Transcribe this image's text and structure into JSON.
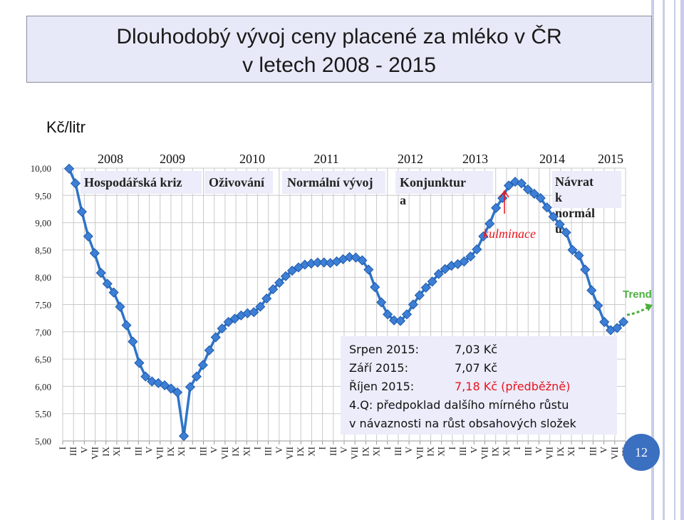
{
  "slide": {
    "title_line1": "Dlouhodobý vývoj ceny placené za mléko v ČR",
    "title_line2": "v letech 2008 - 2015",
    "unit_label": "Kč/litr",
    "page_number": "12"
  },
  "info_box": {
    "rows": [
      {
        "label": "Srpen 2015:",
        "value": "7,03 Kč",
        "highlight": false
      },
      {
        "label": "Září 2015:",
        "value": "7,07 Kč",
        "highlight": false
      },
      {
        "label": "Říjen 2015:",
        "value": "7,18 Kč  (předběžně)",
        "highlight": true
      }
    ],
    "note_line1": "4.Q: předpoklad dalšího mírného růstu",
    "note_line2": "v návaznosti na růst obsahových složek"
  },
  "colors": {
    "line": "#2e74c8",
    "marker": "#3d7fd6",
    "phase_box": "#ececfa",
    "trend": "#4caf3e",
    "kulminace": "#e8141d",
    "info_highlight": "#e8141d"
  },
  "chart_data": {
    "type": "line",
    "ylim": [
      5.0,
      10.0
    ],
    "yticks": [
      "5,00",
      "5,50",
      "6,00",
      "6,50",
      "7,00",
      "7,50",
      "8,00",
      "8,50",
      "9,00",
      "9,50",
      "10,00"
    ],
    "y_grid": true,
    "x_tick_labels": [
      "I",
      "III",
      "V",
      "VII",
      "IX",
      "XI",
      "I",
      "III",
      "V",
      "VII",
      "IX",
      "XI",
      "I",
      "III",
      "V",
      "VII",
      "IX",
      "XI",
      "I",
      "III",
      "V",
      "VII",
      "IX",
      "XI",
      "I",
      "III",
      "V",
      "VII",
      "IX",
      "XI",
      "I",
      "III",
      "V",
      "VII",
      "IX",
      "XI",
      "I",
      "III",
      "V",
      "VII",
      "IX",
      "XI",
      "I",
      "III",
      "V",
      "VII",
      "IX",
      "XI",
      "I",
      "III",
      "V",
      "VII",
      "IX"
    ],
    "years": [
      "2008",
      "2009",
      "2010",
      "2011",
      "2012",
      "2013",
      "2014",
      "2015"
    ],
    "phases": [
      {
        "label": "Hospodářská kriz"
      },
      {
        "label": "Oživování"
      },
      {
        "label": "Normální vývoj"
      },
      {
        "label": "Konjunktur a"
      },
      {
        "label": "Návrat k normál u"
      }
    ],
    "annotations": {
      "kulminace": "kulminace",
      "trend": "Trend"
    },
    "series": [
      {
        "values": [
          9.99,
          9.72,
          9.2,
          8.75,
          8.44,
          8.08,
          7.88,
          7.72,
          7.46,
          7.12,
          6.82,
          6.43,
          6.18,
          6.09,
          6.06,
          6.02,
          5.96,
          5.89,
          5.09,
          5.99,
          6.18,
          6.39,
          6.66,
          6.9,
          7.06,
          7.18,
          7.24,
          7.3,
          7.34,
          7.36,
          7.46,
          7.61,
          7.78,
          7.9,
          8.02,
          8.12,
          8.18,
          8.23,
          8.25,
          8.27,
          8.27,
          8.26,
          8.29,
          8.33,
          8.37,
          8.36,
          8.31,
          8.14,
          7.82,
          7.54,
          7.32,
          7.21,
          7.2,
          7.32,
          7.5,
          7.67,
          7.81,
          7.92,
          8.06,
          8.15,
          8.21,
          8.24,
          8.29,
          8.38,
          8.51,
          8.75,
          8.98,
          9.27,
          9.45,
          9.68,
          9.75,
          9.72,
          9.61,
          9.53,
          9.45,
          9.28,
          9.11,
          8.97,
          8.82,
          8.5,
          8.4,
          8.14,
          7.76,
          7.48,
          7.18,
          7.03,
          7.07,
          7.18
        ]
      }
    ]
  }
}
